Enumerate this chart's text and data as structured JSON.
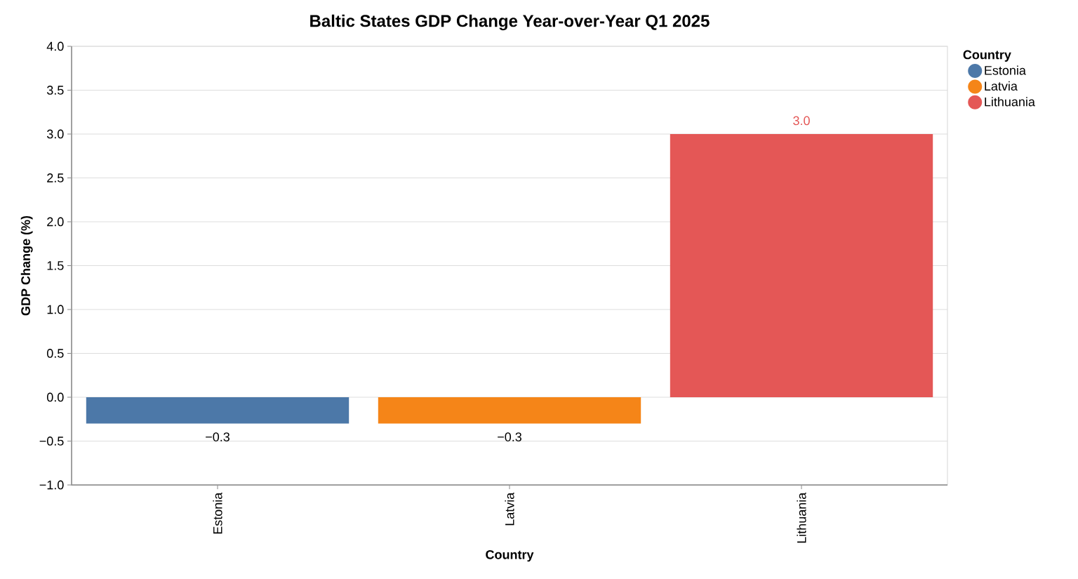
{
  "chart_data": {
    "type": "bar",
    "title": "Baltic States GDP Change Year-over-Year Q1 2025",
    "xlabel": "Country",
    "ylabel": "GDP Change (%)",
    "legend_title": "Country",
    "categories": [
      "Estonia",
      "Latvia",
      "Lithuania"
    ],
    "series": [
      {
        "name": "Estonia",
        "color": "#4c78a8",
        "values": [
          -0.3,
          null,
          null
        ],
        "value_labels": [
          "−0.3",
          null,
          null
        ]
      },
      {
        "name": "Latvia",
        "color": "#f58518",
        "values": [
          null,
          -0.3,
          null
        ],
        "value_labels": [
          null,
          "−0.3",
          null
        ]
      },
      {
        "name": "Lithuania",
        "color": "#e45756",
        "values": [
          null,
          null,
          3.0
        ],
        "value_labels": [
          null,
          null,
          "3.0"
        ]
      }
    ],
    "ylim": [
      -1,
      4
    ],
    "yticks": [
      {
        "value": -1,
        "label": "−1.0"
      },
      {
        "value": -0.5,
        "label": "−0.5"
      },
      {
        "value": 0,
        "label": "0.0"
      },
      {
        "value": 0.5,
        "label": "0.5"
      },
      {
        "value": 1,
        "label": "1.0"
      },
      {
        "value": 1.5,
        "label": "1.5"
      },
      {
        "value": 2,
        "label": "2.0"
      },
      {
        "value": 2.5,
        "label": "2.5"
      },
      {
        "value": 3,
        "label": "3.0"
      },
      {
        "value": 3.5,
        "label": "3.5"
      },
      {
        "value": 4,
        "label": "4.0"
      }
    ],
    "grid": "y",
    "legend": "top right"
  }
}
